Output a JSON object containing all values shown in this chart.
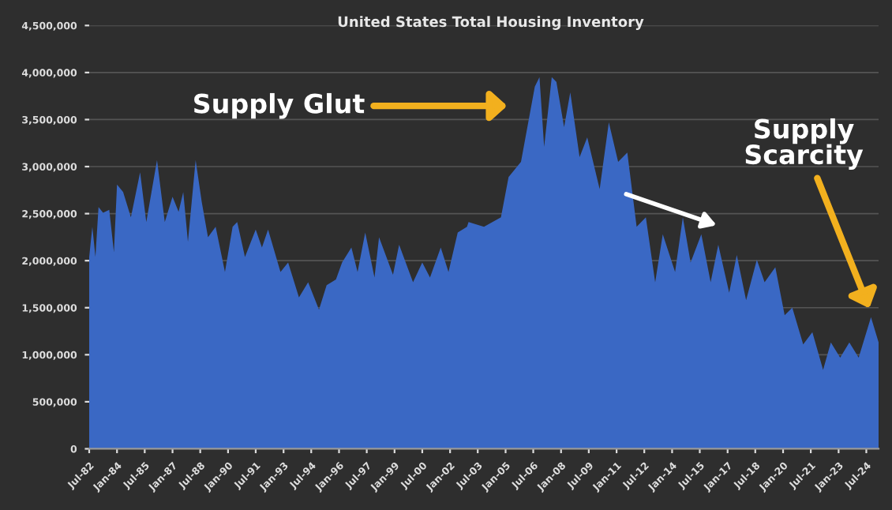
{
  "chart_data": {
    "type": "area",
    "title": "United States Total Housing Inventory",
    "annotations": [
      "Supply Glut",
      {
        "text": "Supply Scarcity",
        "x": "2024-10",
        "y": 1450000
      }
    ],
    "x": [
      "1982-07",
      "1982-09",
      "1982-11",
      "1983-01",
      "1983-04",
      "1983-08",
      "1983-11",
      "1984-01",
      "1984-05",
      "1984-10",
      "1985-04",
      "1985-08",
      "1986-03",
      "1986-08",
      "1987-01",
      "1987-05",
      "1987-08",
      "1987-11",
      "1988-04",
      "1988-08",
      "1988-12",
      "1989-05",
      "1989-11",
      "1990-04",
      "1990-07",
      "1990-12",
      "1991-07",
      "1991-11",
      "1992-03",
      "1992-11",
      "1993-04",
      "1993-11",
      "1994-05",
      "1994-12",
      "1995-05",
      "1995-11",
      "1996-03",
      "1996-09",
      "1997-01",
      "1997-06",
      "1997-12",
      "1998-03",
      "1998-12",
      "1999-04",
      "2000-01",
      "2000-07",
      "2000-12",
      "2001-07",
      "2001-12",
      "2002-06",
      "2002-12",
      "2003-01",
      "2003-11",
      "2004-10",
      "2005-03",
      "2005-11",
      "2006-08",
      "2006-11",
      "2007-02",
      "2007-07",
      "2007-10",
      "2008-03",
      "2008-07",
      "2009-01",
      "2009-06",
      "2010-02",
      "2010-08",
      "2011-02",
      "2011-08",
      "2012-02",
      "2012-08",
      "2013-02",
      "2013-07",
      "2014-03",
      "2014-08",
      "2015-01",
      "2015-08",
      "2016-02",
      "2016-07",
      "2017-02",
      "2017-07",
      "2018-01",
      "2018-08",
      "2019-01",
      "2019-08",
      "2020-02",
      "2020-07",
      "2021-02",
      "2021-08",
      "2022-03",
      "2022-08",
      "2023-02",
      "2023-08",
      "2024-02",
      "2024-10",
      "2025-03"
    ],
    "series": [
      {
        "color": "#3a68c4",
        "values": [
          2040000,
          2360000,
          2040000,
          2570000,
          2510000,
          2540000,
          2090000,
          2810000,
          2730000,
          2460000,
          2940000,
          2410000,
          3070000,
          2410000,
          2680000,
          2520000,
          2730000,
          2200000,
          3070000,
          2620000,
          2250000,
          2360000,
          1880000,
          2360000,
          2410000,
          2040000,
          2330000,
          2140000,
          2330000,
          1880000,
          1980000,
          1610000,
          1770000,
          1480000,
          1740000,
          1800000,
          1980000,
          2140000,
          1880000,
          2300000,
          1820000,
          2250000,
          1850000,
          2170000,
          1770000,
          1980000,
          1820000,
          2140000,
          1880000,
          2300000,
          2360000,
          2410000,
          2360000,
          2460000,
          2890000,
          3050000,
          3850000,
          3950000,
          3210000,
          3950000,
          3900000,
          3420000,
          3790000,
          3100000,
          3310000,
          2760000,
          3470000,
          3050000,
          3150000,
          2360000,
          2460000,
          1770000,
          2280000,
          1880000,
          2460000,
          1980000,
          2280000,
          1770000,
          2170000,
          1660000,
          2060000,
          1580000,
          2010000,
          1770000,
          1930000,
          1420000,
          1500000,
          1110000,
          1240000,
          840000,
          1130000,
          970000,
          1130000,
          970000,
          1400000,
          1130000
        ]
      }
    ],
    "xlim": [
      "1982-07",
      "2025-03"
    ],
    "xticks": [
      {
        "value": "1982-07",
        "label": "Jul-82"
      },
      {
        "value": "1984-01",
        "label": "Jan-84"
      },
      {
        "value": "1985-07",
        "label": "Jul-85"
      },
      {
        "value": "1987-01",
        "label": "Jan-87"
      },
      {
        "value": "1988-07",
        "label": "Jul-88"
      },
      {
        "value": "1990-01",
        "label": "Jan-90"
      },
      {
        "value": "1991-07",
        "label": "Jul-91"
      },
      {
        "value": "1993-01",
        "label": "Jan-93"
      },
      {
        "value": "1994-07",
        "label": "Jul-94"
      },
      {
        "value": "1996-01",
        "label": "Jan-96"
      },
      {
        "value": "1997-07",
        "label": "Jul-97"
      },
      {
        "value": "1999-01",
        "label": "Jan-99"
      },
      {
        "value": "2000-07",
        "label": "Jul-00"
      },
      {
        "value": "2002-01",
        "label": "Jan-02"
      },
      {
        "value": "2003-07",
        "label": "Jul-03"
      },
      {
        "value": "2005-01",
        "label": "Jan-05"
      },
      {
        "value": "2006-07",
        "label": "Jul-06"
      },
      {
        "value": "2008-01",
        "label": "Jan-08"
      },
      {
        "value": "2009-07",
        "label": "Jul-09"
      },
      {
        "value": "2011-01",
        "label": "Jan-11"
      },
      {
        "value": "2012-07",
        "label": "Jul-12"
      },
      {
        "value": "2014-01",
        "label": "Jan-14"
      },
      {
        "value": "2015-07",
        "label": "Jul-15"
      },
      {
        "value": "2017-01",
        "label": "Jan-17"
      },
      {
        "value": "2018-07",
        "label": "Jul-18"
      },
      {
        "value": "2020-01",
        "label": "Jan-20"
      },
      {
        "value": "2021-07",
        "label": "Jul-21"
      },
      {
        "value": "2023-01",
        "label": "Jan-23"
      },
      {
        "value": "2024-07",
        "label": "Jul-24"
      }
    ],
    "ylim": [
      0,
      4500000
    ],
    "yticks": [
      {
        "value": 0,
        "label": "0"
      },
      {
        "value": 500000,
        "label": "500,000"
      },
      {
        "value": 1000000,
        "label": "1,000,000"
      },
      {
        "value": 1500000,
        "label": "1,500,000"
      },
      {
        "value": 2000000,
        "label": "2,000,000"
      },
      {
        "value": 2500000,
        "label": "2,500,000"
      },
      {
        "value": 3000000,
        "label": "3,000,000"
      },
      {
        "value": 3500000,
        "label": "3,500,000"
      },
      {
        "value": 4000000,
        "label": "4,000,000"
      },
      {
        "value": 4500000,
        "label": "4,500,000"
      }
    ],
    "grid": "y",
    "legend": false
  }
}
